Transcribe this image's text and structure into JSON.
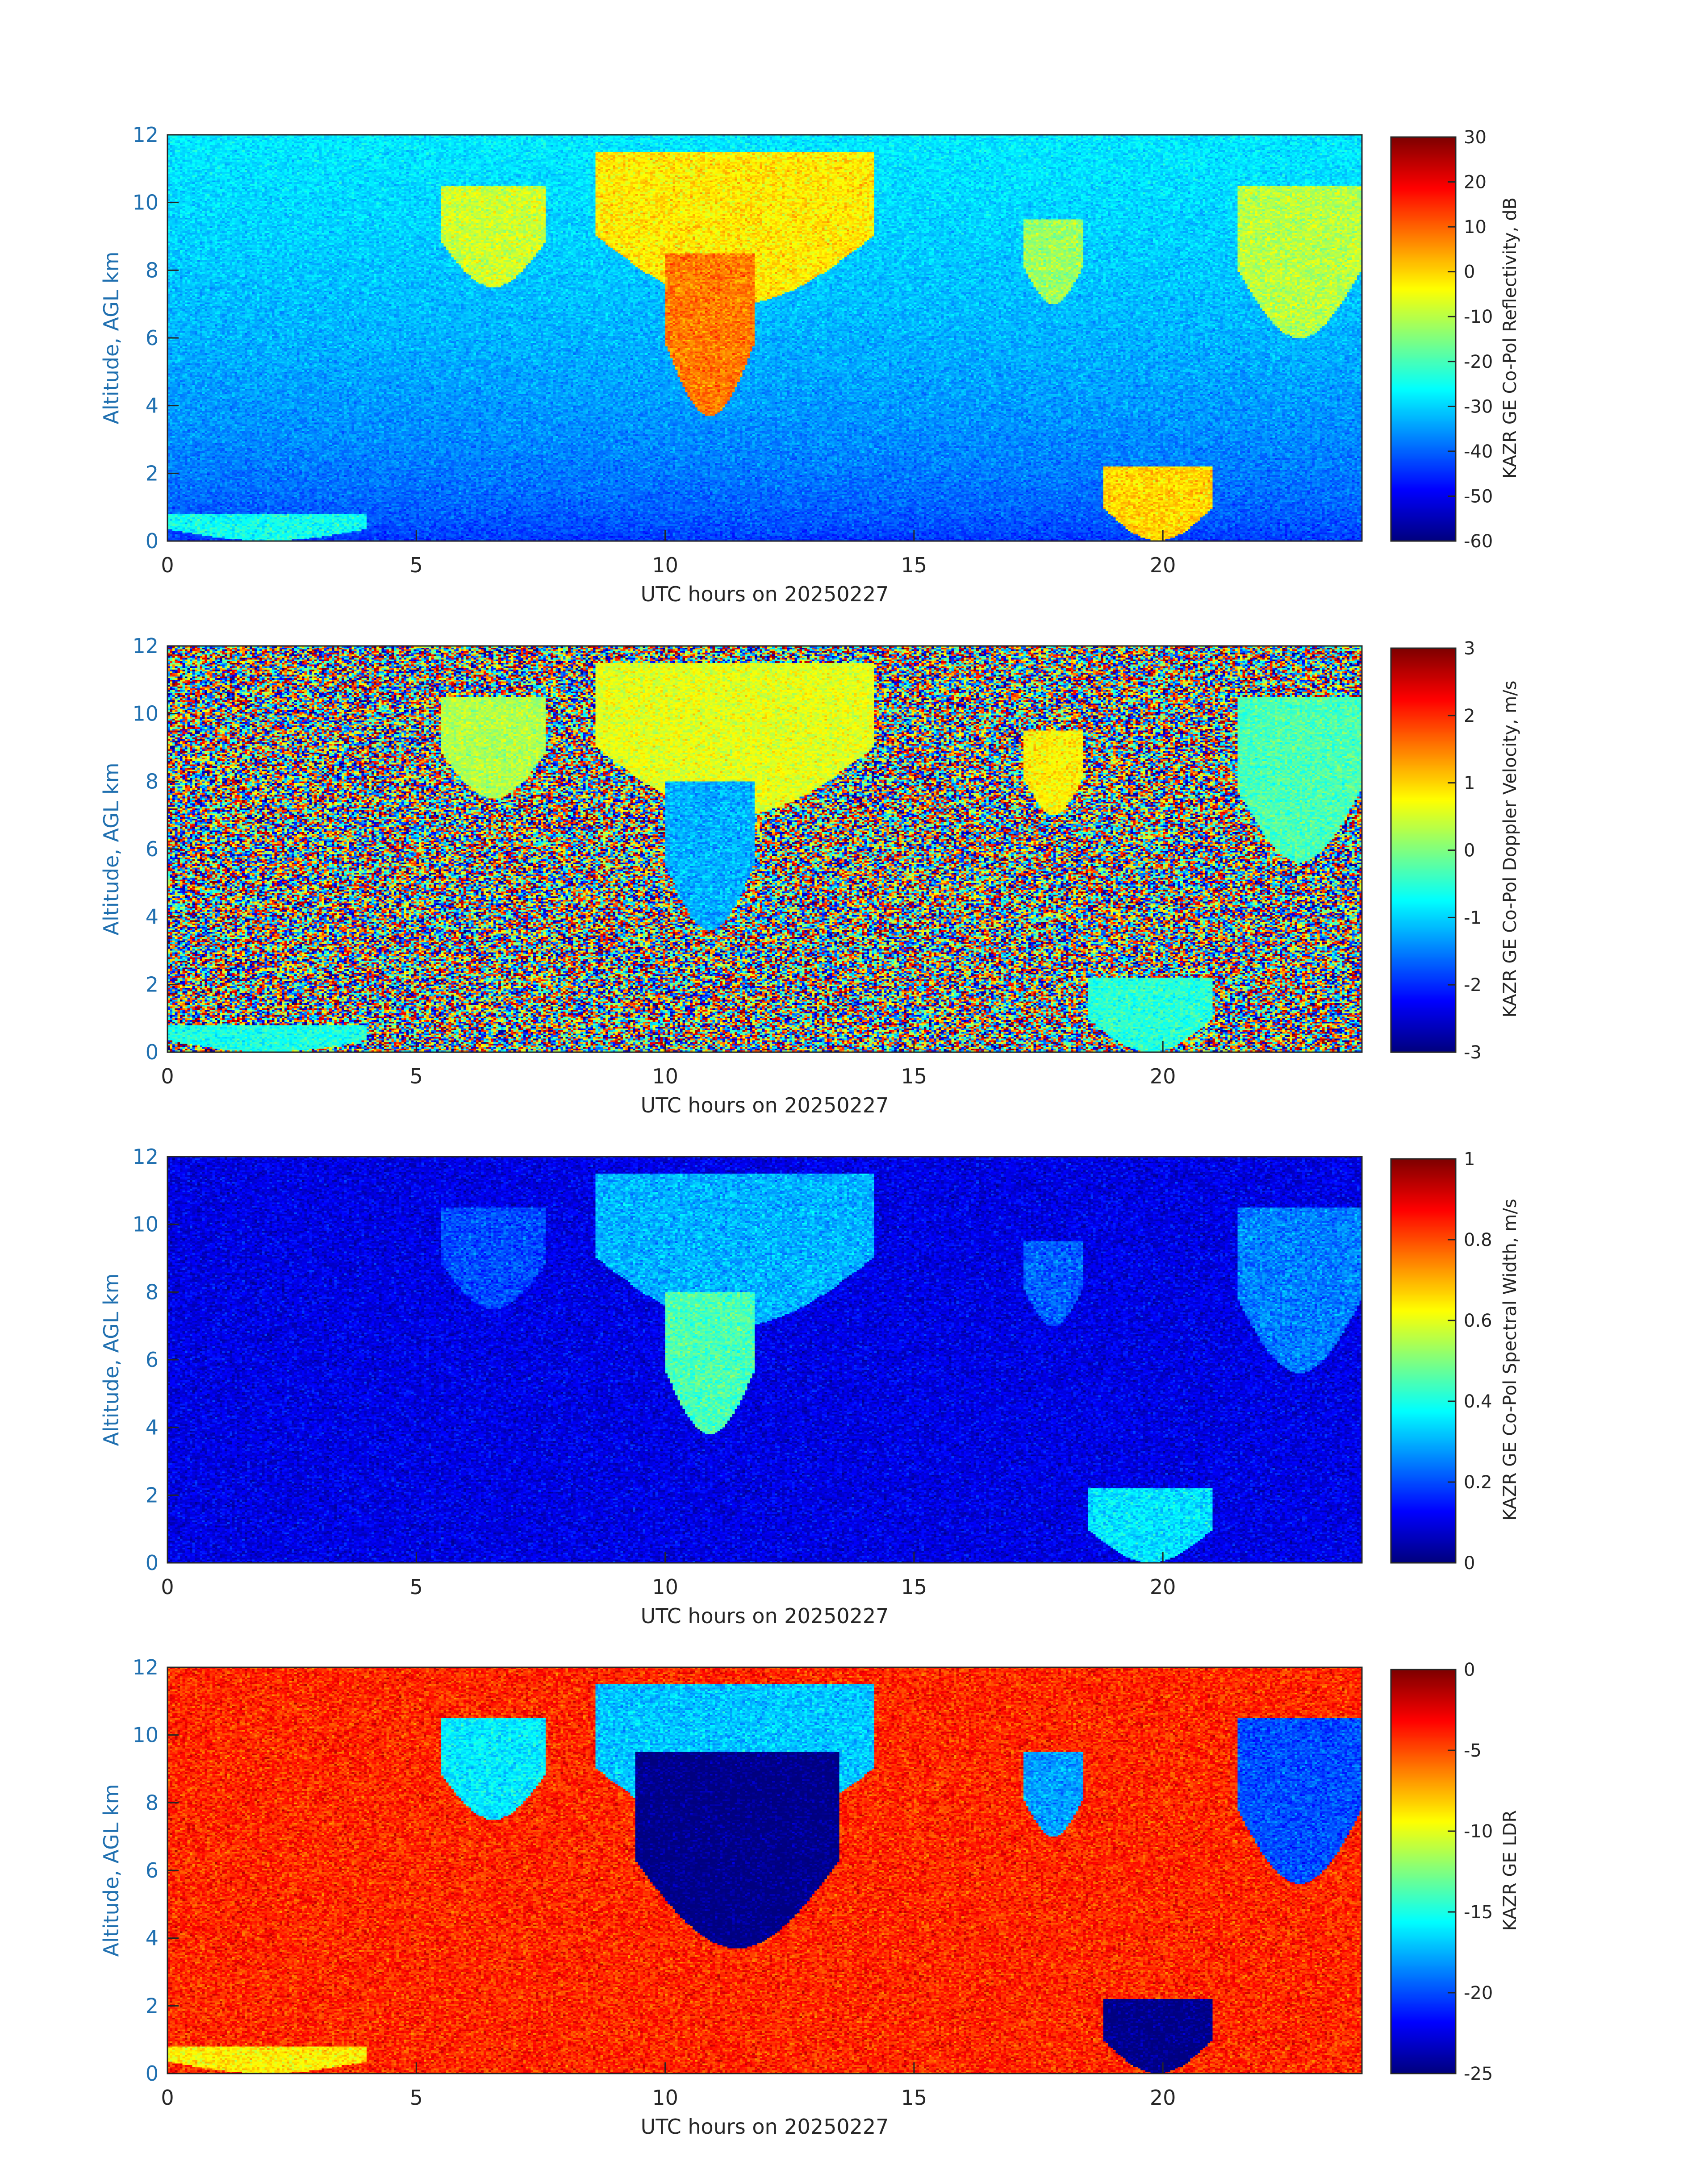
{
  "chart_data": [
    {
      "type": "heatmap",
      "panel": "reflectivity",
      "xlabel": "UTC hours on 20250227",
      "ylabel": "Altitude, AGL km",
      "xlim": [
        0,
        24
      ],
      "ylim": [
        0,
        12
      ],
      "x_ticks": [
        0,
        5,
        10,
        15,
        20
      ],
      "y_ticks": [
        0,
        2,
        4,
        6,
        8,
        10,
        12
      ],
      "colorbar": {
        "label": "KAZR GE Co-Pol Reflectivity, dB",
        "min": -60,
        "max": 30,
        "ticks": [
          -60,
          -50,
          -40,
          -30,
          -20,
          -10,
          0,
          10,
          20,
          30
        ],
        "colormap": "jet"
      },
      "background": {
        "top": -28,
        "bottom": -45,
        "noise": 4
      },
      "features": [
        {
          "t0": 5.5,
          "t1": 7.6,
          "top": 10.5,
          "base": 7.5,
          "value": -8
        },
        {
          "t0": 8.6,
          "t1": 14.2,
          "top": 11.5,
          "base": 7.0,
          "value": -2
        },
        {
          "t0": 10.0,
          "t1": 11.8,
          "top": 8.5,
          "base": 3.7,
          "value": 8
        },
        {
          "t0": 17.2,
          "t1": 18.4,
          "top": 9.5,
          "base": 7.0,
          "value": -12
        },
        {
          "t0": 21.5,
          "t1": 24.0,
          "top": 10.5,
          "base": 6.0,
          "value": -10
        },
        {
          "t0": 18.8,
          "t1": 21.0,
          "top": 2.2,
          "base": 0.0,
          "value": 0
        },
        {
          "t0": 0.0,
          "t1": 4.0,
          "top": 0.8,
          "base": 0.0,
          "value": -25
        }
      ]
    },
    {
      "type": "heatmap",
      "panel": "doppler",
      "xlabel": "UTC hours on 20250227",
      "ylabel": "Altitude, AGL km",
      "xlim": [
        0,
        24
      ],
      "ylim": [
        0,
        12
      ],
      "x_ticks": [
        0,
        5,
        10,
        15,
        20
      ],
      "y_ticks": [
        0,
        2,
        4,
        6,
        8,
        10,
        12
      ],
      "colorbar": {
        "label": "KAZR GE Co-Pol Doppler Velocity, m/s",
        "min": -3,
        "max": 3,
        "ticks": [
          -3,
          -2,
          -1,
          0,
          1,
          2,
          3
        ],
        "colormap": "jet"
      },
      "background": {
        "noise": "random",
        "range": [
          -3,
          3
        ]
      },
      "features": [
        {
          "t0": 5.5,
          "t1": 7.6,
          "top": 10.5,
          "base": 7.5,
          "value": 0.3
        },
        {
          "t0": 8.6,
          "t1": 14.2,
          "top": 11.5,
          "base": 7.0,
          "value": 0.6
        },
        {
          "t0": 10.0,
          "t1": 11.8,
          "top": 8.0,
          "base": 3.6,
          "value": -1.2
        },
        {
          "t0": 17.2,
          "t1": 18.4,
          "top": 9.5,
          "base": 7.0,
          "value": 0.8
        },
        {
          "t0": 21.5,
          "t1": 24.0,
          "top": 10.5,
          "base": 5.6,
          "value": -0.3
        },
        {
          "t0": 18.5,
          "t1": 21.0,
          "top": 2.2,
          "base": 0.0,
          "value": -0.5
        },
        {
          "t0": 0.0,
          "t1": 4.0,
          "top": 0.8,
          "base": 0.0,
          "value": -0.6
        }
      ]
    },
    {
      "type": "heatmap",
      "panel": "spectral_width",
      "xlabel": "UTC hours on 20250227",
      "ylabel": "Altitude, AGL km",
      "xlim": [
        0,
        24
      ],
      "ylim": [
        0,
        12
      ],
      "x_ticks": [
        0,
        5,
        10,
        15,
        20
      ],
      "y_ticks": [
        0,
        2,
        4,
        6,
        8,
        10,
        12
      ],
      "colorbar": {
        "label": "KAZR GE Co-Pol Spectral Width, m/s",
        "min": 0,
        "max": 1,
        "ticks": [
          0,
          0.2,
          0.4,
          0.6,
          0.8,
          1
        ],
        "colormap": "jet"
      },
      "background": {
        "top": 0.1,
        "bottom": 0.1,
        "noise": 0.06
      },
      "features": [
        {
          "t0": 5.5,
          "t1": 7.6,
          "top": 10.5,
          "base": 7.5,
          "value": 0.2
        },
        {
          "t0": 8.6,
          "t1": 14.2,
          "top": 11.5,
          "base": 7.0,
          "value": 0.3
        },
        {
          "t0": 10.0,
          "t1": 11.8,
          "top": 8.0,
          "base": 3.8,
          "value": 0.45
        },
        {
          "t0": 17.2,
          "t1": 18.4,
          "top": 9.5,
          "base": 7.0,
          "value": 0.22
        },
        {
          "t0": 21.5,
          "t1": 24.0,
          "top": 10.5,
          "base": 5.6,
          "value": 0.25
        },
        {
          "t0": 18.5,
          "t1": 21.0,
          "top": 2.2,
          "base": 0.0,
          "value": 0.35
        }
      ]
    },
    {
      "type": "heatmap",
      "panel": "ldr",
      "xlabel": "UTC hours on 20250227",
      "ylabel": "Altitude, AGL km",
      "xlim": [
        0,
        24
      ],
      "ylim": [
        0,
        12
      ],
      "x_ticks": [
        0,
        5,
        10,
        15,
        20
      ],
      "y_ticks": [
        0,
        2,
        4,
        6,
        8,
        10,
        12
      ],
      "colorbar": {
        "label": "KAZR GE LDR",
        "min": -25,
        "max": 0,
        "ticks": [
          -25,
          -20,
          -15,
          -10,
          -5,
          0
        ],
        "colormap": "jet"
      },
      "background": {
        "top": -4,
        "bottom": -4,
        "noise": 1.8
      },
      "features": [
        {
          "t0": 5.5,
          "t1": 7.6,
          "top": 10.5,
          "base": 7.5,
          "value": -16
        },
        {
          "t0": 8.6,
          "t1": 14.2,
          "top": 11.5,
          "base": 7.0,
          "value": -17
        },
        {
          "t0": 9.4,
          "t1": 13.5,
          "top": 9.5,
          "base": 3.7,
          "value": -25
        },
        {
          "t0": 17.2,
          "t1": 18.4,
          "top": 9.5,
          "base": 7.0,
          "value": -18
        },
        {
          "t0": 21.5,
          "t1": 24.0,
          "top": 10.5,
          "base": 5.6,
          "value": -20
        },
        {
          "t0": 18.8,
          "t1": 21.0,
          "top": 2.2,
          "base": 0.0,
          "value": -25
        },
        {
          "t0": 0.0,
          "t1": 4.0,
          "top": 0.8,
          "base": 0.0,
          "value": -9
        }
      ]
    }
  ]
}
